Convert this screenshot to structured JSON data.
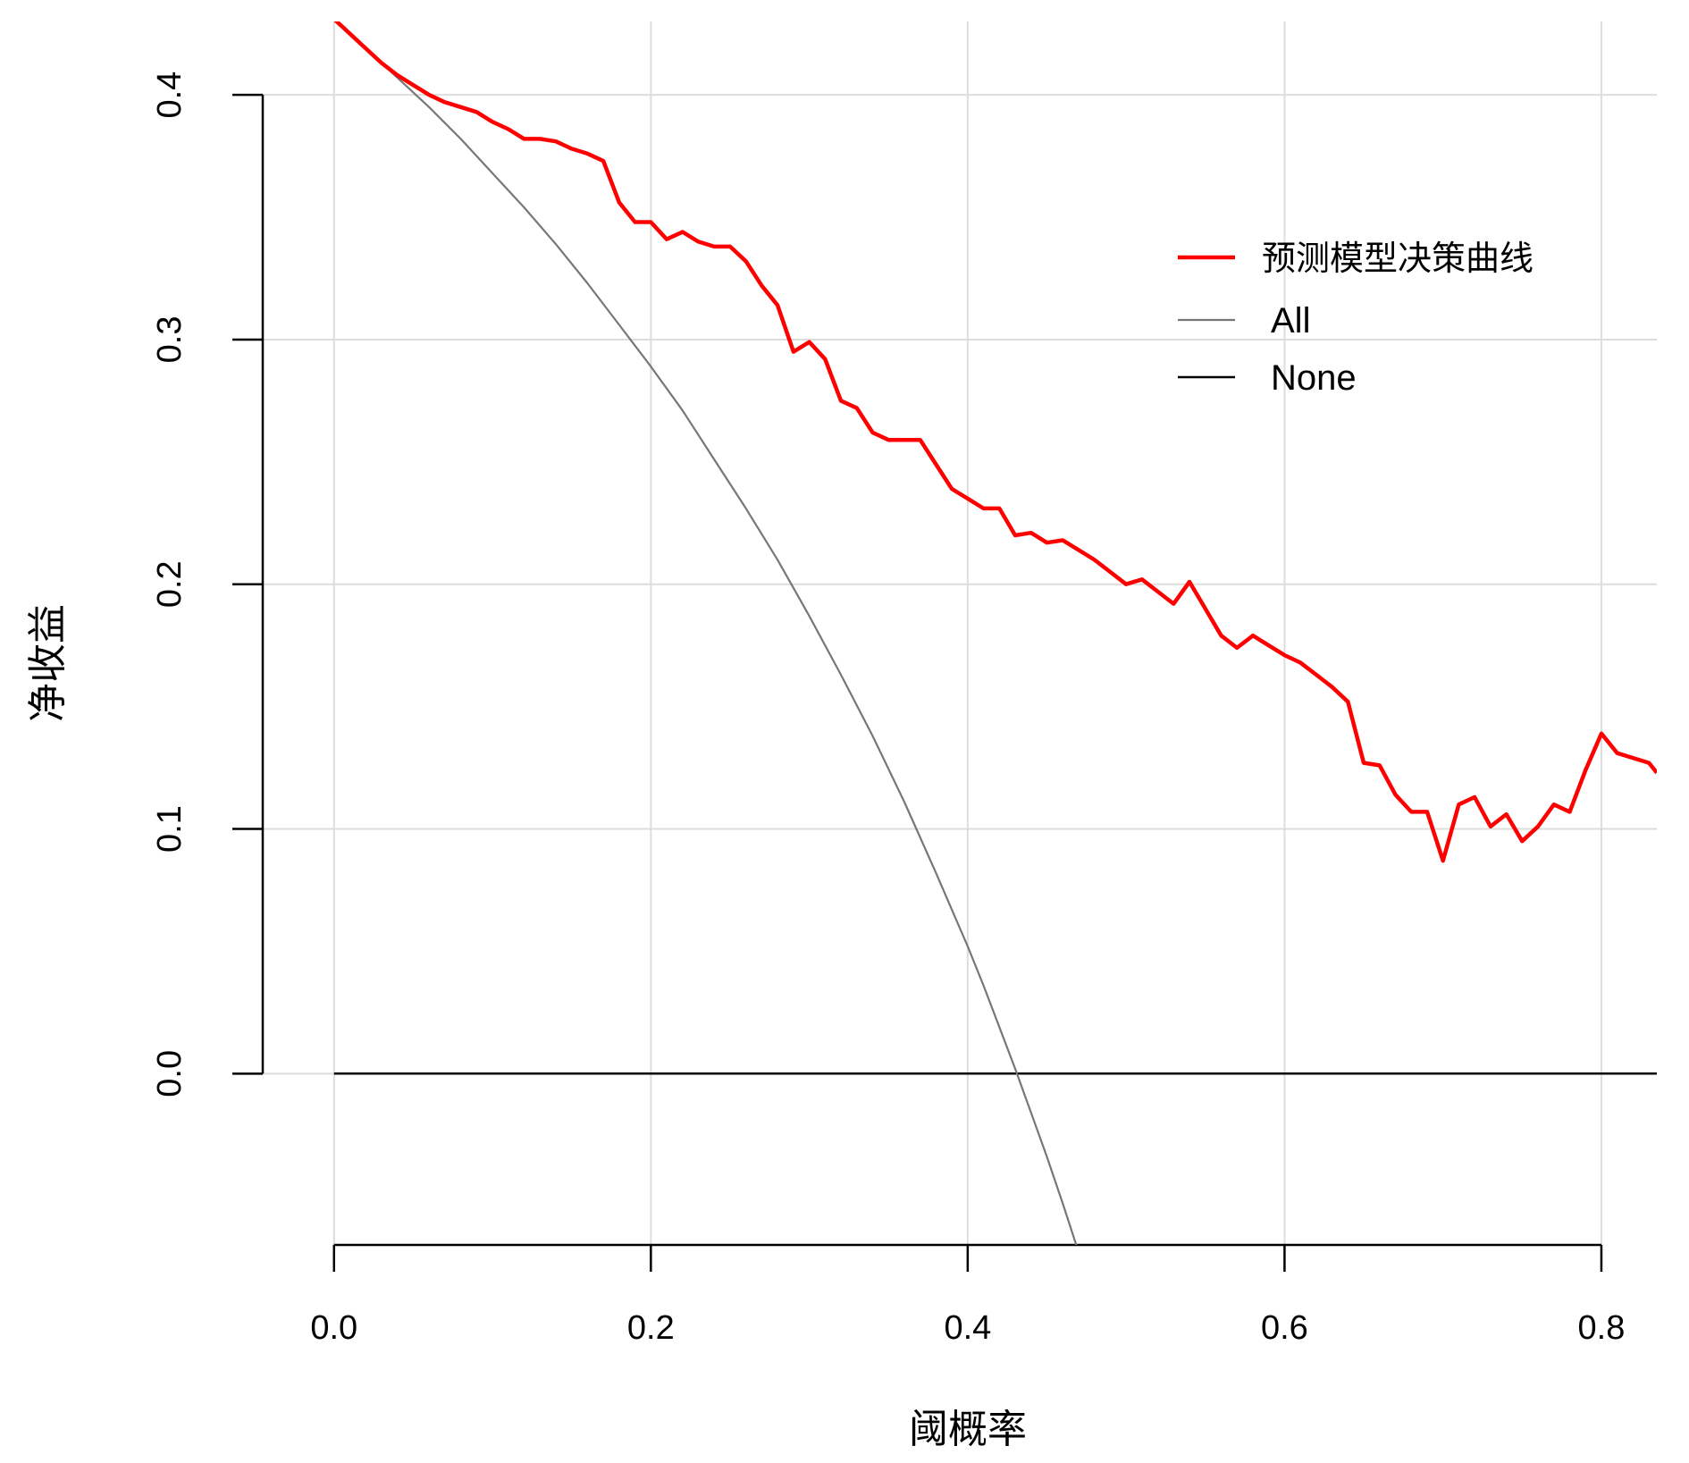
{
  "chart_data": {
    "type": "line",
    "xlabel": "阈概率",
    "ylabel": "净收益",
    "xlim": [
      -0.045,
      0.835
    ],
    "ylim": [
      -0.07,
      0.43
    ],
    "x_ticks": [
      "0.0",
      "0.2",
      "0.4",
      "0.6",
      "0.8"
    ],
    "x_tick_values": [
      0.0,
      0.2,
      0.4,
      0.6,
      0.8
    ],
    "y_ticks": [
      "0.0",
      "0.1",
      "0.2",
      "0.3",
      "0.4"
    ],
    "y_tick_values": [
      0.0,
      0.1,
      0.2,
      0.3,
      0.4
    ],
    "grid": true,
    "legend_position": "top-right",
    "series": [
      {
        "name": "预测模型决策曲线",
        "color": "#ff0000",
        "x": [
          0.0,
          0.01,
          0.02,
          0.03,
          0.04,
          0.05,
          0.06,
          0.07,
          0.08,
          0.09,
          0.1,
          0.11,
          0.12,
          0.13,
          0.14,
          0.15,
          0.16,
          0.17,
          0.18,
          0.19,
          0.2,
          0.21,
          0.22,
          0.23,
          0.24,
          0.25,
          0.26,
          0.27,
          0.28,
          0.29,
          0.3,
          0.31,
          0.32,
          0.33,
          0.34,
          0.35,
          0.36,
          0.37,
          0.38,
          0.39,
          0.4,
          0.41,
          0.42,
          0.43,
          0.44,
          0.45,
          0.46,
          0.47,
          0.48,
          0.49,
          0.5,
          0.51,
          0.52,
          0.53,
          0.54,
          0.55,
          0.56,
          0.57,
          0.58,
          0.59,
          0.6,
          0.61,
          0.62,
          0.63,
          0.64,
          0.65,
          0.66,
          0.67,
          0.68,
          0.69,
          0.7,
          0.71,
          0.72,
          0.73,
          0.74,
          0.75,
          0.76,
          0.77,
          0.78,
          0.79,
          0.8,
          0.81,
          0.82,
          0.83,
          0.835
        ],
        "y": [
          0.431,
          0.425,
          0.419,
          0.413,
          0.408,
          0.404,
          0.4,
          0.397,
          0.395,
          0.393,
          0.389,
          0.386,
          0.382,
          0.382,
          0.381,
          0.378,
          0.376,
          0.373,
          0.356,
          0.348,
          0.348,
          0.341,
          0.344,
          0.34,
          0.338,
          0.338,
          0.332,
          0.322,
          0.314,
          0.295,
          0.299,
          0.292,
          0.275,
          0.272,
          0.262,
          0.259,
          0.259,
          0.259,
          0.249,
          0.239,
          0.235,
          0.231,
          0.231,
          0.22,
          0.221,
          0.217,
          0.218,
          0.214,
          0.21,
          0.205,
          0.2,
          0.202,
          0.197,
          0.192,
          0.201,
          0.19,
          0.179,
          0.174,
          0.179,
          0.175,
          0.171,
          0.168,
          0.163,
          0.158,
          0.152,
          0.127,
          0.126,
          0.114,
          0.107,
          0.107,
          0.087,
          0.11,
          0.113,
          0.101,
          0.106,
          0.095,
          0.101,
          0.11,
          0.107,
          0.124,
          0.139,
          0.131,
          0.129,
          0.127,
          0.123
        ]
      },
      {
        "name": "All",
        "color": "#777777",
        "prevalence": 0.431,
        "x": [
          0.0,
          0.02,
          0.04,
          0.06,
          0.08,
          0.1,
          0.12,
          0.14,
          0.16,
          0.18,
          0.2,
          0.22,
          0.24,
          0.26,
          0.28,
          0.3,
          0.32,
          0.34,
          0.36,
          0.38,
          0.4,
          0.41,
          0.42,
          0.43,
          0.44,
          0.45,
          0.46,
          0.47
        ],
        "y": [
          0.431,
          0.419,
          0.407,
          0.395,
          0.382,
          0.368,
          0.354,
          0.339,
          0.323,
          0.306,
          0.289,
          0.271,
          0.251,
          0.231,
          0.21,
          0.187,
          0.163,
          0.138,
          0.111,
          0.082,
          0.052,
          0.036,
          0.019,
          0.002,
          -0.016,
          -0.034,
          -0.053,
          -0.073
        ]
      },
      {
        "name": "None",
        "color": "#000000",
        "x": [
          0.0,
          0.835
        ],
        "y": [
          0.0,
          0.0
        ]
      }
    ]
  }
}
